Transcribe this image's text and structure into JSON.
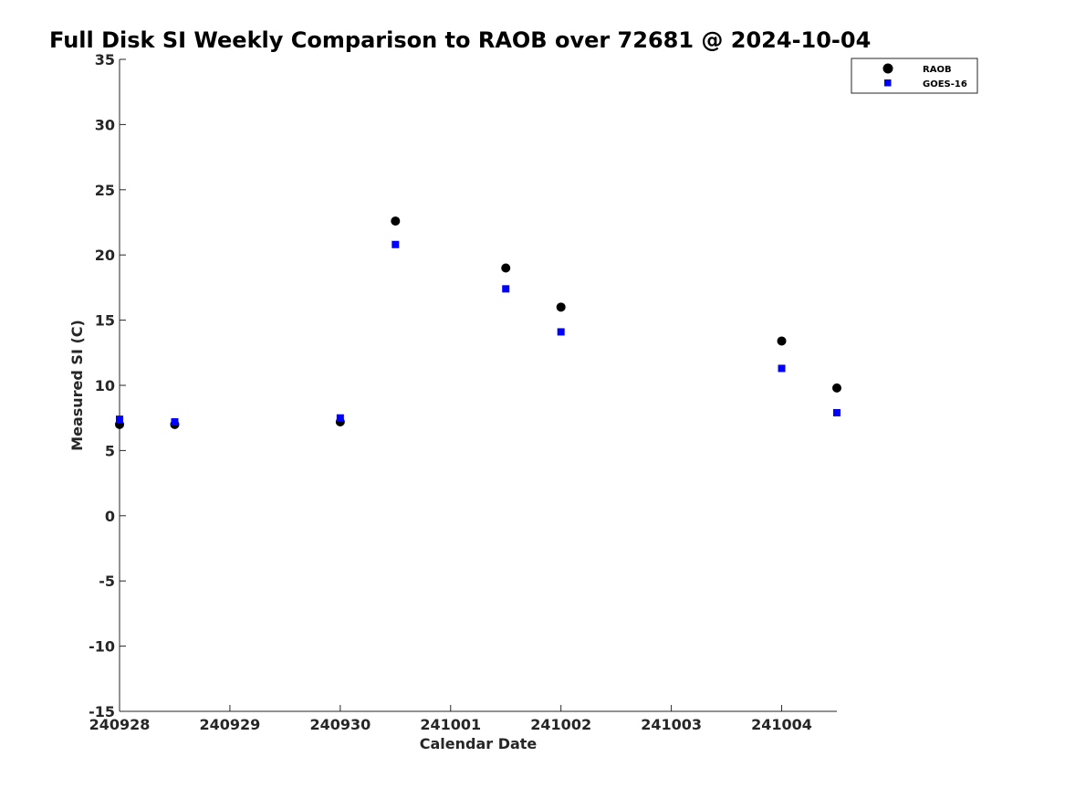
{
  "chart_data": {
    "type": "scatter",
    "title": "Full Disk SI Weekly Comparison to RAOB over 72681 @ 2024-10-04",
    "xlabel": "Calendar Date",
    "ylabel": "Measured SI (C)",
    "x_tick_labels": [
      "240928",
      "240929",
      "240930",
      "241001",
      "241002",
      "241003",
      "241004"
    ],
    "x_tick_values": [
      "2024-09-28",
      "2024-09-29",
      "2024-09-30",
      "2024-10-01",
      "2024-10-02",
      "2024-10-03",
      "2024-10-04"
    ],
    "xlim": [
      "2024-09-28 00:00",
      "2024-10-04 12:00"
    ],
    "ylim": [
      -15,
      35
    ],
    "y_ticks": [
      -15,
      -10,
      -5,
      0,
      5,
      10,
      15,
      20,
      25,
      30,
      35
    ],
    "y_tick_labels": [
      "-15",
      "-10",
      "-5",
      "0",
      "5",
      "10",
      "15",
      "20",
      "25",
      "30",
      "35"
    ],
    "grid": false,
    "legend_position": "top-right",
    "series": [
      {
        "name": "RAOB",
        "marker": "circle",
        "color": "#000000",
        "points": [
          {
            "x": "2024-09-28 00:00",
            "y": 7.0
          },
          {
            "x": "2024-09-28 12:00",
            "y": 7.0
          },
          {
            "x": "2024-09-30 00:00",
            "y": 7.2
          },
          {
            "x": "2024-09-30 12:00",
            "y": 22.6
          },
          {
            "x": "2024-10-01 12:00",
            "y": 19.0
          },
          {
            "x": "2024-10-02 00:00",
            "y": 16.0
          },
          {
            "x": "2024-10-04 00:00",
            "y": 13.4
          },
          {
            "x": "2024-10-04 12:00",
            "y": 9.8
          }
        ]
      },
      {
        "name": "GOES-16",
        "marker": "square",
        "color": "#0000ff",
        "points": [
          {
            "x": "2024-09-28 00:00",
            "y": 7.4
          },
          {
            "x": "2024-09-28 12:00",
            "y": 7.2
          },
          {
            "x": "2024-09-30 00:00",
            "y": 7.5
          },
          {
            "x": "2024-09-30 12:00",
            "y": 20.8
          },
          {
            "x": "2024-10-01 12:00",
            "y": 17.4
          },
          {
            "x": "2024-10-02 00:00",
            "y": 14.1
          },
          {
            "x": "2024-10-04 00:00",
            "y": 11.3
          },
          {
            "x": "2024-10-04 12:00",
            "y": 7.9
          }
        ]
      }
    ]
  }
}
